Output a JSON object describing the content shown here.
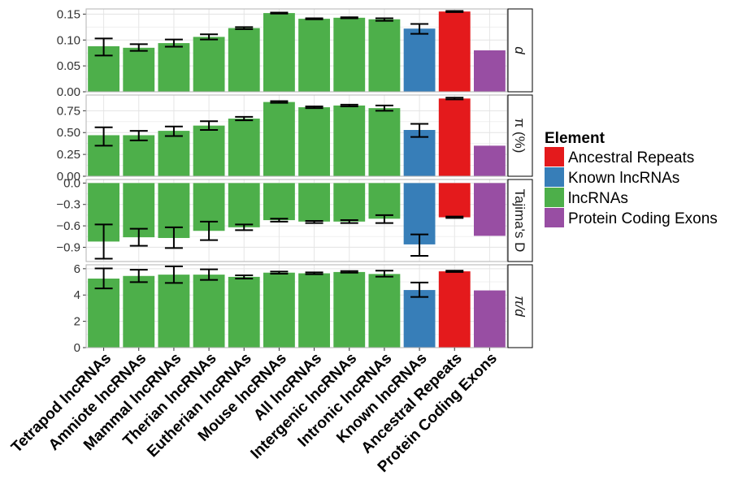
{
  "chart_data": {
    "type": "bar",
    "categories": [
      "Tetrapod lncRNAs",
      "Amniote lncRNAs",
      "Mammal lncRNAs",
      "Therian lncRNAs",
      "Eutherian lncRNAs",
      "Mouse lncRNAs",
      "All lncRNAs",
      "Intergenic lncRNAs",
      "Intronic lncRNAs",
      "Known lncRNAs",
      "Ancestral Repeats",
      "Protein Coding Exons"
    ],
    "element": [
      "lncRNAs",
      "lncRNAs",
      "lncRNAs",
      "lncRNAs",
      "lncRNAs",
      "lncRNAs",
      "lncRNAs",
      "lncRNAs",
      "lncRNAs",
      "Known lncRNAs",
      "Ancestral Repeats",
      "Protein Coding Exons"
    ],
    "panels": [
      {
        "label": "d",
        "ylim": [
          0,
          0.16
        ],
        "ticks": [
          0.0,
          0.05,
          0.1,
          0.15
        ],
        "tick_labels": [
          "0.00",
          "0.05",
          "0.10",
          "0.15"
        ],
        "values": [
          0.088,
          0.085,
          0.094,
          0.106,
          0.123,
          0.152,
          0.141,
          0.143,
          0.14,
          0.122,
          0.155,
          0.08
        ],
        "error_low": [
          0.07,
          0.079,
          0.087,
          0.101,
          0.121,
          0.151,
          0.14,
          0.142,
          0.137,
          0.112,
          0.154,
          null
        ],
        "error_high": [
          0.103,
          0.092,
          0.101,
          0.111,
          0.125,
          0.153,
          0.142,
          0.144,
          0.142,
          0.131,
          0.156,
          null
        ]
      },
      {
        "label": "π (%)",
        "ylim": [
          0,
          0.93
        ],
        "ticks": [
          0.0,
          0.25,
          0.5,
          0.75
        ],
        "tick_labels": [
          "0.00",
          "0.25",
          "0.50",
          "0.75"
        ],
        "values": [
          0.47,
          0.47,
          0.52,
          0.58,
          0.66,
          0.85,
          0.79,
          0.81,
          0.78,
          0.53,
          0.89,
          0.35
        ],
        "error_low": [
          0.35,
          0.41,
          0.46,
          0.53,
          0.64,
          0.84,
          0.78,
          0.8,
          0.75,
          0.45,
          0.88,
          null
        ],
        "error_high": [
          0.56,
          0.52,
          0.57,
          0.63,
          0.68,
          0.86,
          0.8,
          0.82,
          0.81,
          0.6,
          0.9,
          null
        ]
      },
      {
        "label": "Tajima's D",
        "ylim": [
          -1.1,
          0.05
        ],
        "ticks": [
          0.0,
          -0.3,
          -0.6,
          -0.9
        ],
        "tick_labels": [
          "0.0",
          "−0.3",
          "−0.6",
          "−0.9"
        ],
        "values": [
          -0.82,
          -0.76,
          -0.77,
          -0.67,
          -0.62,
          -0.52,
          -0.54,
          -0.54,
          -0.5,
          -0.86,
          -0.48,
          -0.74
        ],
        "error_low": [
          -1.06,
          -0.88,
          -0.91,
          -0.8,
          -0.66,
          -0.54,
          -0.56,
          -0.56,
          -0.56,
          -1.02,
          -0.49,
          null
        ],
        "error_high": [
          -0.58,
          -0.64,
          -0.62,
          -0.54,
          -0.58,
          -0.5,
          -0.53,
          -0.52,
          -0.45,
          -0.72,
          -0.47,
          null
        ]
      },
      {
        "label": "π/d",
        "ylim": [
          0,
          6.3
        ],
        "ticks": [
          0,
          2,
          4,
          6
        ],
        "tick_labels": [
          "0",
          "2",
          "4",
          "6"
        ],
        "values": [
          5.25,
          5.45,
          5.55,
          5.55,
          5.38,
          5.7,
          5.65,
          5.75,
          5.6,
          4.38,
          5.8,
          4.35
        ],
        "error_low": [
          4.5,
          4.98,
          4.92,
          5.15,
          5.25,
          5.62,
          5.58,
          5.7,
          5.4,
          3.85,
          5.75,
          null
        ],
        "error_high": [
          6.02,
          5.92,
          6.18,
          5.95,
          5.5,
          5.78,
          5.72,
          5.82,
          5.85,
          4.95,
          5.85,
          null
        ]
      }
    ],
    "legend": {
      "title": "Element",
      "position": "right",
      "items": [
        {
          "label": "Ancestral Repeats",
          "color": "#e41a1c"
        },
        {
          "label": "Known lncRNAs",
          "color": "#377eb8"
        },
        {
          "label": "lncRNAs",
          "color": "#4daf4a"
        },
        {
          "label": "Protein Coding Exons",
          "color": "#984ea3"
        }
      ]
    },
    "grid": true
  }
}
